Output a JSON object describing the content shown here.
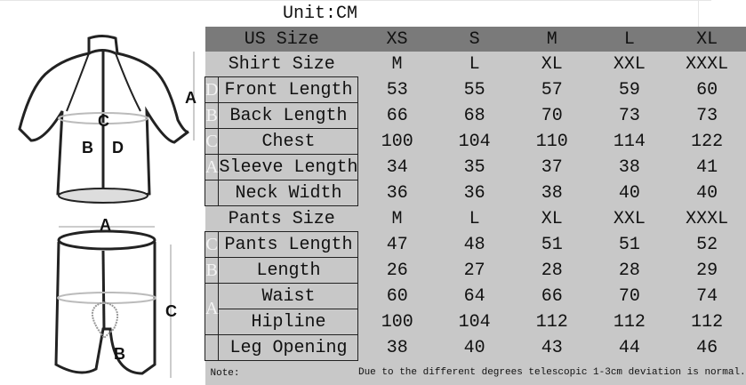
{
  "unit_label": "Unit:CM",
  "header": {
    "label": "US Size",
    "sizes": [
      "XS",
      "S",
      "M",
      "L",
      "XL"
    ]
  },
  "shirt": {
    "label": "Shirt Size",
    "sizes": [
      "M",
      "L",
      "XL",
      "XXL",
      "XXXL"
    ],
    "rows": [
      {
        "letter": "D",
        "label": "Front Length",
        "values": [
          "53",
          "55",
          "57",
          "59",
          "60"
        ]
      },
      {
        "letter": "B",
        "label": "Back Length",
        "values": [
          "66",
          "68",
          "70",
          "73",
          "73"
        ]
      },
      {
        "letter": "C",
        "label": "Chest",
        "values": [
          "100",
          "104",
          "110",
          "114",
          "122"
        ]
      },
      {
        "letter": "A",
        "label": "Sleeve Length",
        "values": [
          "34",
          "35",
          "37",
          "38",
          "41"
        ]
      },
      {
        "letter": "",
        "label": "Neck Width",
        "values": [
          "36",
          "36",
          "38",
          "40",
          "40"
        ]
      }
    ]
  },
  "pants": {
    "label": "Pants Size",
    "sizes": [
      "M",
      "L",
      "XL",
      "XXL",
      "XXXL"
    ],
    "rows": [
      {
        "letter": "C",
        "label": "Pants Length",
        "values": [
          "47",
          "48",
          "51",
          "51",
          "52"
        ]
      },
      {
        "letter": "B",
        "label": "Length",
        "values": [
          "26",
          "27",
          "28",
          "28",
          "29"
        ]
      },
      {
        "letter": "A",
        "label": "Waist",
        "values": [
          "60",
          "64",
          "66",
          "70",
          "74"
        ]
      },
      {
        "letter": "",
        "label": "Hipline",
        "values": [
          "100",
          "104",
          "112",
          "112",
          "112"
        ]
      },
      {
        "letter": "",
        "label": "Leg Opening",
        "values": [
          "38",
          "40",
          "43",
          "44",
          "46"
        ]
      }
    ]
  },
  "note": {
    "label": "Note:",
    "text": "Due to the different degrees telescopic 1-3cm deviation is normal."
  },
  "diagram": {
    "jersey_labels": [
      "A",
      "B",
      "C",
      "D"
    ],
    "shorts_labels": [
      "A",
      "B",
      "C"
    ]
  }
}
